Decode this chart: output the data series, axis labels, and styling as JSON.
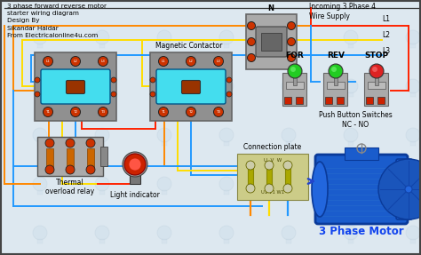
{
  "title": "3 phase forward reverse motor\nstarter wiring diagram\nDesign By\nSikandar Haidar\nFrom Electricalonline4u.com",
  "background_color": "#dde8f0",
  "label_incoming": "Incoming 3 Phase 4\nWire Supply",
  "label_N": "N",
  "label_L1": "L1",
  "label_L2": "L2",
  "label_L3": "L3",
  "label_magnetic": "Magnetic Contactor",
  "label_for": "FOR",
  "label_rev": "REV",
  "label_stop": "STOP",
  "label_push": "Push Button Switches\nNC - NO",
  "label_thermal": "Thermal\noverload relay",
  "label_light": "Light indicator",
  "label_conn": "Connection plate",
  "label_motor": "3 Phase Motor",
  "wire_orange": "#ff8800",
  "wire_yellow": "#ffdd00",
  "wire_blue": "#2299ff",
  "wire_red": "#ff2200",
  "wire_pink": "#ff88cc",
  "wire_gray": "#888888",
  "contactor_fill": "#44ddee",
  "contactor_body": "#909090",
  "motor_fill": "#1a5ccc",
  "motor_dark": "#0a3a99",
  "button_for_color": "#22cc22",
  "button_rev_color": "#22cc22",
  "button_stop_color": "#dd2222",
  "text_motor_color": "#1144ee",
  "mccb_fill": "#aaaaaa",
  "tor_fill": "#aaaaaa",
  "font_size_title": 5.2,
  "font_size_label": 5.5,
  "font_size_motor": 8.5,
  "border_color": "#444444"
}
